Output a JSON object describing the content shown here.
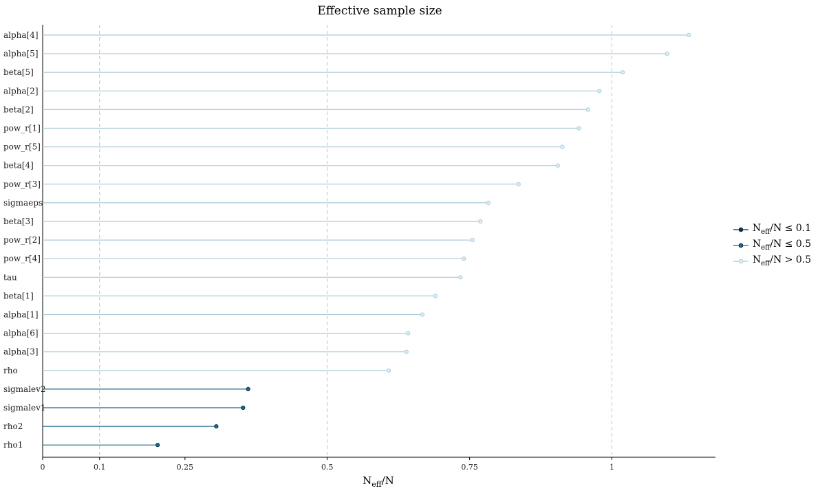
{
  "chart_data": {
    "type": "lollipop",
    "title": "Effective sample size",
    "xlabel": {
      "main": "N",
      "sub": "eff",
      "tail": "/N"
    },
    "xlim": [
      0,
      1.2
    ],
    "xticks": [
      0,
      0.1,
      0.25,
      0.5,
      0.75,
      1
    ],
    "xtick_labels": [
      "0",
      "0.1",
      "0.25",
      "0.5",
      "0.75",
      "1"
    ],
    "reference_lines": [
      0.1,
      0.5,
      1
    ],
    "categories": [
      "alpha[4]",
      "alpha[5]",
      "beta[5]",
      "alpha[2]",
      "beta[2]",
      "pow_r[1]",
      "pow_r[5]",
      "beta[4]",
      "pow_r[3]",
      "sigmaeps",
      "beta[3]",
      "pow_r[2]",
      "pow_r[4]",
      "tau",
      "beta[1]",
      "alpha[1]",
      "alpha[6]",
      "alpha[3]",
      "rho",
      "sigmalev2",
      "sigmalev1",
      "rho2",
      "rho1"
    ],
    "values": [
      1.135,
      1.097,
      1.019,
      0.978,
      0.958,
      0.942,
      0.913,
      0.905,
      0.836,
      0.783,
      0.769,
      0.755,
      0.74,
      0.734,
      0.69,
      0.667,
      0.642,
      0.639,
      0.608,
      0.361,
      0.352,
      0.305,
      0.202
    ],
    "legend_position": "right",
    "legend": [
      {
        "main": "N",
        "sub": "eff",
        "tail": "/N ≤ 0.1",
        "color": "#0b2f4a"
      },
      {
        "main": "N",
        "sub": "eff",
        "tail": "/N ≤ 0.5",
        "color": "#1f6b8a"
      },
      {
        "main": "N",
        "sub": "eff",
        "tail": "/N > 0.5",
        "color": "#a8ccd9"
      }
    ],
    "colors": {
      "high": "#a8ccd9",
      "mid": "#1f6b8a",
      "low": "#0b2f4a",
      "reference_line": "#b8c4c8"
    }
  }
}
